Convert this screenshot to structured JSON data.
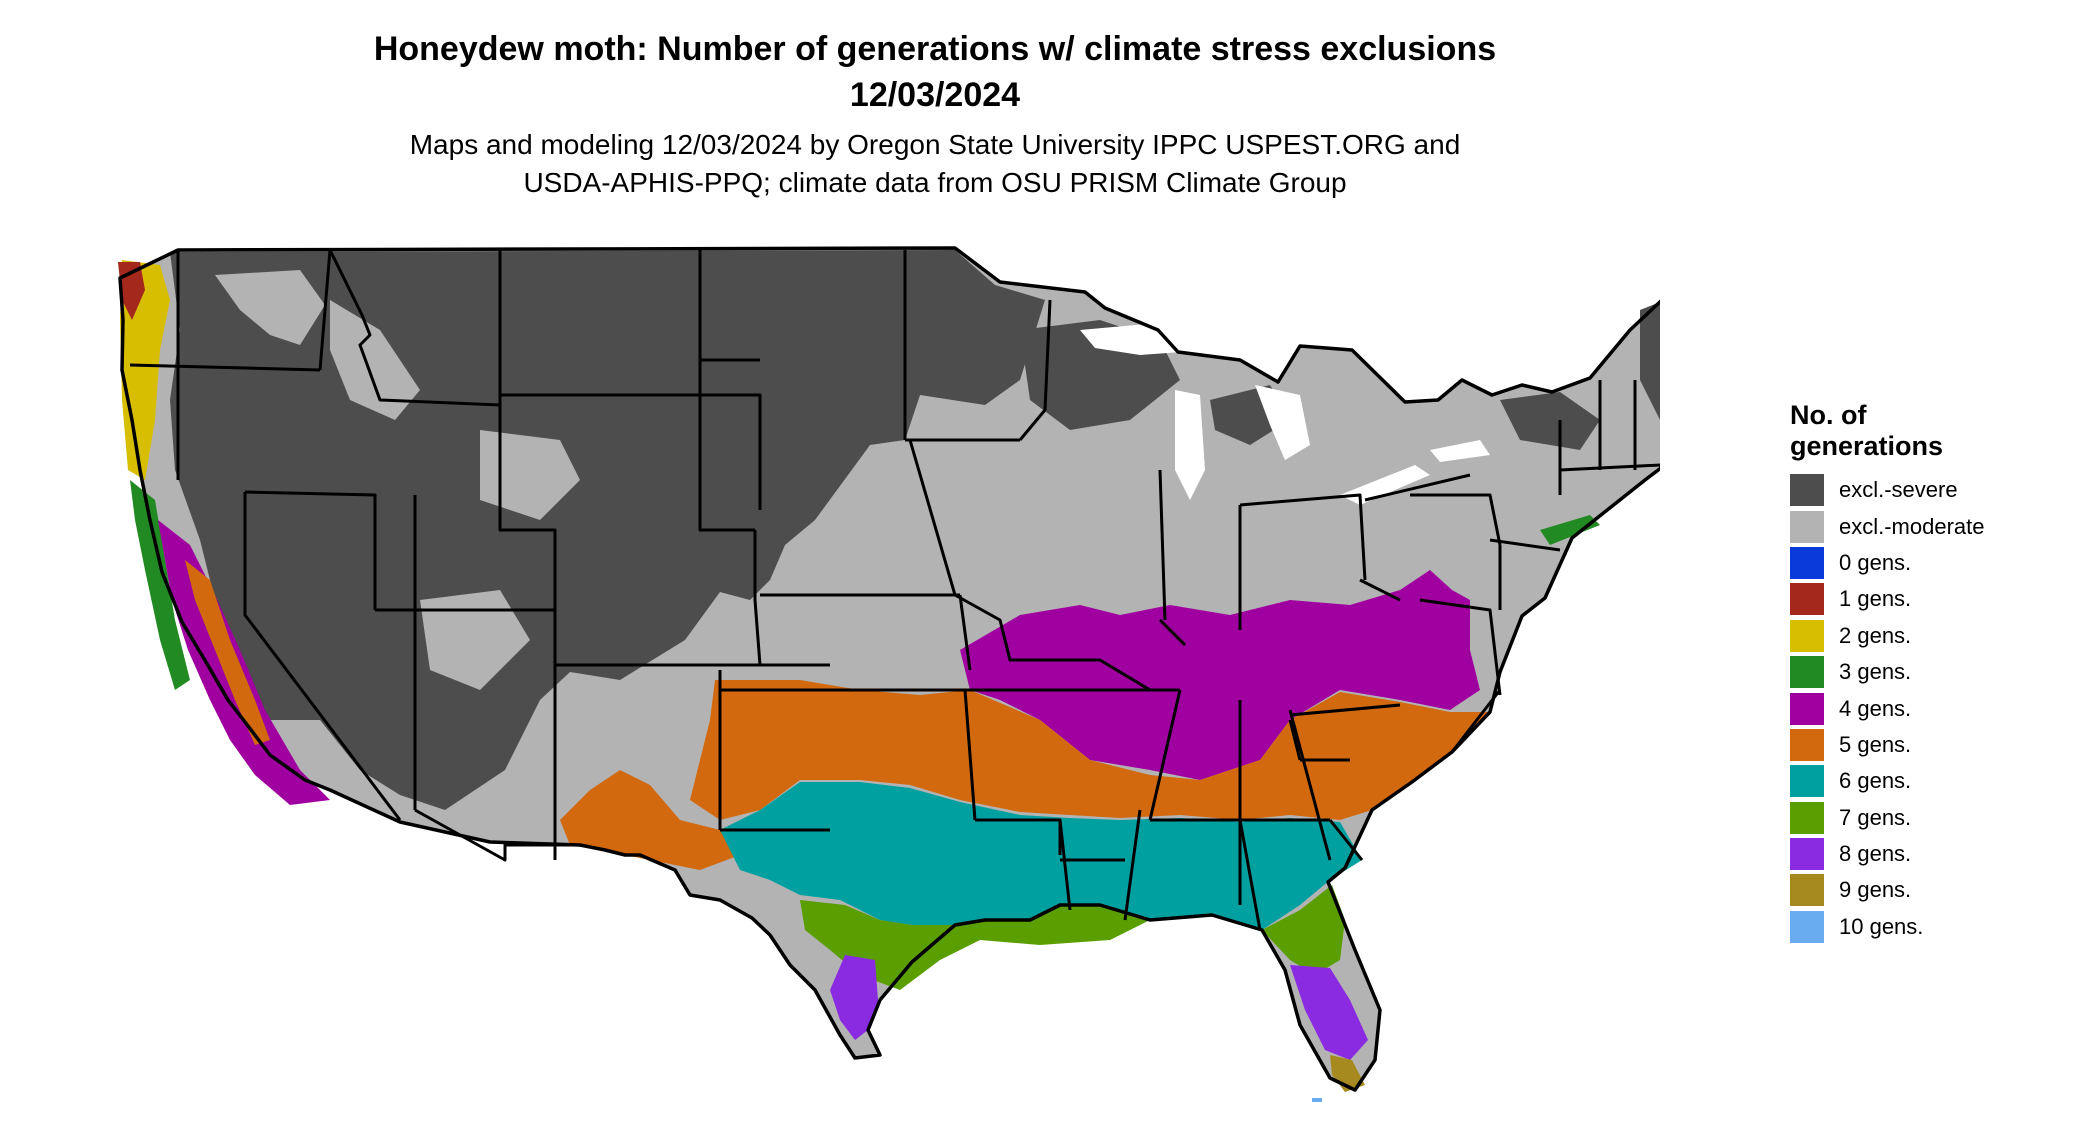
{
  "title": {
    "line1": "Honeydew moth: Number of generations w/ climate stress exclusions",
    "line2": "12/03/2024"
  },
  "subtitle": {
    "line1": "Maps and modeling 12/03/2024 by Oregon State University IPPC USPEST.ORG and",
    "line2": "USDA-APHIS-PPQ; climate data from OSU PRISM Climate Group"
  },
  "legend": {
    "title_line1": "No. of",
    "title_line2": "generations",
    "items": [
      {
        "label": "excl.-severe",
        "color": "#4d4d4d"
      },
      {
        "label": "excl.-moderate",
        "color": "#b3b3b3"
      },
      {
        "label": "0 gens.",
        "color": "#0a3ad9"
      },
      {
        "label": "1 gens.",
        "color": "#a4281c"
      },
      {
        "label": "2 gens.",
        "color": "#d8be00"
      },
      {
        "label": "3 gens.",
        "color": "#228a22"
      },
      {
        "label": "4 gens.",
        "color": "#a000a0"
      },
      {
        "label": "5 gens.",
        "color": "#d2690e"
      },
      {
        "label": "6 gens.",
        "color": "#00a0a0"
      },
      {
        "label": "7 gens.",
        "color": "#5a9e00"
      },
      {
        "label": "8 gens.",
        "color": "#8a2be2"
      },
      {
        "label": "9 gens.",
        "color": "#a68a20"
      },
      {
        "label": "10 gens.",
        "color": "#6aacf0"
      }
    ]
  }
}
